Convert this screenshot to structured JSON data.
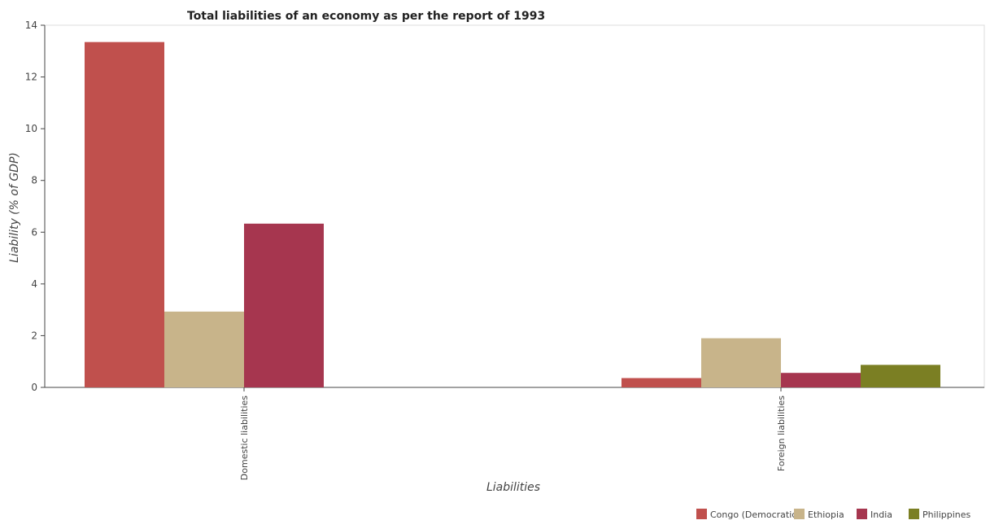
{
  "chart_data": {
    "type": "bar",
    "title": "Total liabilities of an economy as per the report of 1993",
    "xlabel": "Liabilities",
    "ylabel": "Liability (% of GDP)",
    "categories": [
      "Domestic liabilities",
      "Foreign liabilities"
    ],
    "ylim": [
      0,
      14
    ],
    "yticks": [
      "0",
      "2",
      "4",
      "6",
      "8",
      "10",
      "12",
      "14"
    ],
    "grid": false,
    "legend_position": "bottom-right",
    "series": [
      {
        "name": "Congo (Democratic)",
        "color": "#c0504d",
        "values": [
          13.35,
          0.36
        ]
      },
      {
        "name": "Ethiopia",
        "color": "#c8b48a",
        "values": [
          2.93,
          1.9
        ]
      },
      {
        "name": "India",
        "color": "#a6364f",
        "values": [
          6.33,
          0.56
        ]
      },
      {
        "name": "Philippines",
        "color": "#7b7f23",
        "values": [
          0,
          0.87
        ]
      }
    ]
  }
}
